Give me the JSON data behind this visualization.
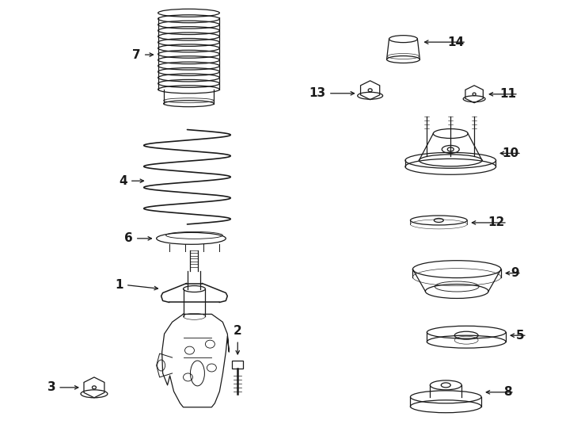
{
  "bg_color": "#ffffff",
  "lc": "#1a1a1a",
  "figsize": [
    7.34,
    5.4
  ],
  "dpi": 100,
  "xlim": [
    0,
    734
  ],
  "ylim": [
    540,
    0
  ]
}
